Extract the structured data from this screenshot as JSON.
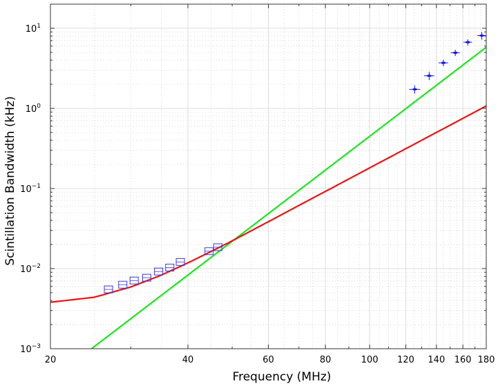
{
  "chart_data": {
    "type": "scatter",
    "xlabel": "Frequency (MHz)",
    "ylabel": "Scintillation Bandwidth (kHz)",
    "xscale": "log",
    "yscale": "log",
    "xlim": [
      20,
      180
    ],
    "ylim": [
      0.001,
      20
    ],
    "grid": true,
    "x_ticks": [
      20,
      40,
      60,
      80,
      100,
      120,
      140,
      160,
      180
    ],
    "x_tick_labels": [
      "20",
      "40",
      "60",
      "80",
      "100",
      "120",
      "140",
      "160",
      "180"
    ],
    "y_ticks": [
      0.001,
      0.01,
      0.1,
      1,
      10
    ],
    "y_tick_labels": [
      {
        "base": "10",
        "exp": "−3"
      },
      {
        "base": "10",
        "exp": "−2"
      },
      {
        "base": "10",
        "exp": "−1"
      },
      {
        "base": "10",
        "exp": "0"
      },
      {
        "base": "10",
        "exp": "1"
      }
    ],
    "series": [
      {
        "marker": "square",
        "color": "#3a3ad8",
        "points": [
          {
            "x": 26.8,
            "y": 0.0055
          },
          {
            "x": 28.8,
            "y": 0.0063
          },
          {
            "x": 30.5,
            "y": 0.0071
          },
          {
            "x": 32.5,
            "y": 0.0077
          },
          {
            "x": 34.5,
            "y": 0.0092
          },
          {
            "x": 36.5,
            "y": 0.0103
          },
          {
            "x": 38.5,
            "y": 0.0121
          },
          {
            "x": 44.5,
            "y": 0.0165
          },
          {
            "x": 46.5,
            "y": 0.0185
          }
        ]
      },
      {
        "marker": "cross",
        "color": "#1010ee",
        "points": [
          {
            "x": 125.5,
            "y": 1.73,
            "yerr": 0.2,
            "xerr": 3.5
          },
          {
            "x": 135,
            "y": 2.55,
            "yerr": 0.3,
            "xerr": 3.5
          },
          {
            "x": 145,
            "y": 3.7,
            "yerr": 0.35,
            "xerr": 3.5
          },
          {
            "x": 154,
            "y": 4.95,
            "yerr": 0.45,
            "xerr": 3.5
          },
          {
            "x": 164,
            "y": 6.7,
            "yerr": 0.6,
            "xerr": 3.5
          },
          {
            "x": 176,
            "y": 8.1,
            "yerr": 0.9,
            "xerr": 4
          }
        ]
      }
    ],
    "lines": [
      {
        "type": "power_law",
        "color": "#19e619",
        "x": [
          24.6,
          180
        ],
        "y": [
          0.001,
          5.8
        ]
      },
      {
        "type": "model",
        "color": "#ee1111",
        "x": [
          20,
          25,
          30,
          35,
          40,
          45,
          50,
          60,
          70,
          80
        ],
        "y": [
          0.0038,
          0.0044,
          0.0059,
          0.0083,
          0.0118,
          0.0164,
          0.0222,
          0.0385,
          0.0614,
          0.092
        ]
      }
    ]
  }
}
